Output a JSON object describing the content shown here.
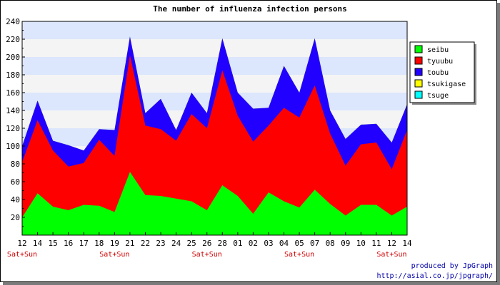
{
  "chart_data": {
    "type": "area",
    "stacked": true,
    "title": "The number of influenza infection persons",
    "xlabel": "",
    "ylabel": "",
    "ylim": [
      0,
      240
    ],
    "yticks": [
      20,
      40,
      60,
      80,
      100,
      120,
      140,
      160,
      180,
      200,
      220,
      240
    ],
    "grid": true,
    "grid_band_colors": [
      "#dce6fc",
      "#f4f4f4"
    ],
    "legend_position": "right",
    "categories": [
      "12",
      "14",
      "15",
      "16",
      "17",
      "18",
      "19",
      "21",
      "22",
      "23",
      "24",
      "25",
      "26",
      "28",
      "01",
      "02",
      "03",
      "04",
      "05",
      "07",
      "08",
      "09",
      "10",
      "11",
      "12",
      "14"
    ],
    "week_markers": [
      {
        "index": 0,
        "label": "Sat+Sun"
      },
      {
        "index": 6,
        "label": "Sat+Sun"
      },
      {
        "index": 12,
        "label": "Sat+Sun"
      },
      {
        "index": 18,
        "label": "Sat+Sun"
      },
      {
        "index": 24,
        "label": "Sat+Sun"
      }
    ],
    "series": [
      {
        "name": "seibu",
        "color": "#00ff00",
        "values": [
          20,
          47,
          32,
          28,
          34,
          33,
          26,
          71,
          45,
          44,
          41,
          38,
          28,
          56,
          44,
          24,
          48,
          38,
          31,
          51,
          35,
          22,
          34,
          34,
          22,
          32
        ]
      },
      {
        "name": "tyuubu",
        "color": "#ff0000",
        "values": [
          62,
          82,
          63,
          49,
          47,
          74,
          63,
          131,
          78,
          75,
          65,
          98,
          92,
          129,
          90,
          81,
          75,
          105,
          101,
          117,
          79,
          56,
          68,
          70,
          52,
          86
        ]
      },
      {
        "name": "toubu",
        "color": "#2200ff",
        "values": [
          18,
          22,
          11,
          24,
          14,
          12,
          29,
          21,
          14,
          34,
          12,
          24,
          17,
          36,
          26,
          37,
          20,
          47,
          28,
          53,
          26,
          30,
          22,
          21,
          30,
          29
        ]
      },
      {
        "name": "tsukigase",
        "color": "#ffff00",
        "values": [
          0,
          0,
          0,
          0,
          0,
          0,
          0,
          0,
          0,
          0,
          0,
          0,
          0,
          0,
          0,
          0,
          0,
          0,
          0,
          0,
          0,
          0,
          0,
          0,
          0,
          0
        ]
      },
      {
        "name": "tsuge",
        "color": "#00ffff",
        "values": [
          0,
          0,
          0,
          0,
          0,
          0,
          0,
          0,
          0,
          0,
          0,
          0,
          0,
          0,
          0,
          0,
          0,
          0,
          0,
          0,
          0,
          0,
          0,
          0,
          0,
          0
        ]
      }
    ]
  },
  "credits": {
    "line1": "produced by JpGraph",
    "line2": "http://asial.co.jp/jpgraph/"
  }
}
